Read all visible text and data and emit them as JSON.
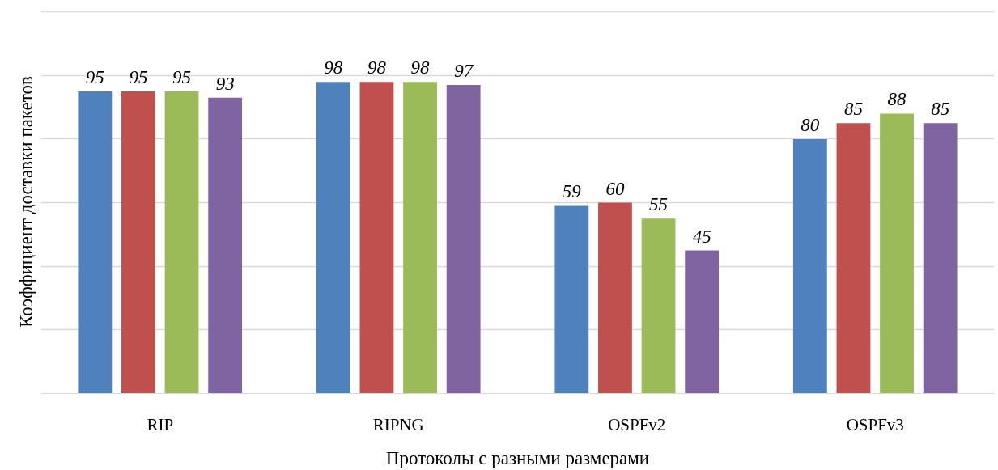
{
  "chart_data": {
    "type": "bar",
    "xlabel": "Протоколы с разными размерами",
    "ylabel": "Коэффициент доставки пакетов",
    "categories": [
      "RIP",
      "RIPNG",
      "OSPFv2",
      "OSPFv3"
    ],
    "series": [
      {
        "color": "#4f81bd",
        "values": [
          95,
          98,
          59,
          80
        ]
      },
      {
        "color": "#c0504d",
        "values": [
          95,
          98,
          60,
          85
        ]
      },
      {
        "color": "#9bbb59",
        "values": [
          95,
          98,
          55,
          88
        ]
      },
      {
        "color": "#8064a2",
        "values": [
          93,
          97,
          45,
          85
        ]
      }
    ],
    "grid": "y",
    "tick_labels": "x",
    "data_labels": true
  }
}
